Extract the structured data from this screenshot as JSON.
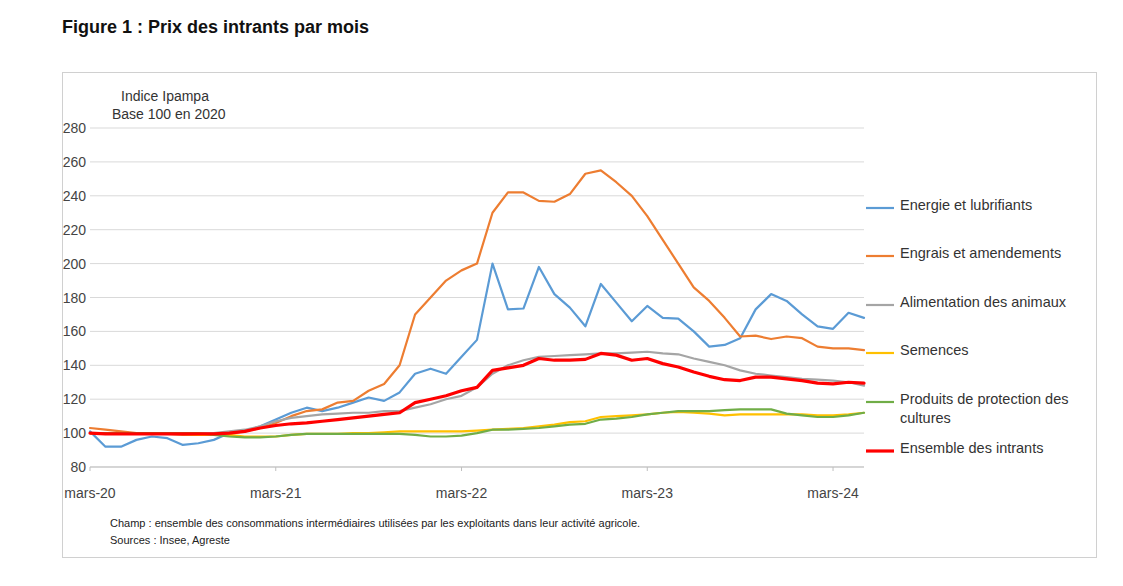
{
  "chart_data": {
    "type": "line",
    "title": "Figure 1 : Prix des intrants par mois",
    "ylabel": [
      "Indice Ipampa",
      "Base 100 en 2020"
    ],
    "annotations": [
      "Champ : ensemble des consommations intermédiaires utilisées par les exploitants dans leur activité agricole.",
      "Sources : Insee, Agreste"
    ],
    "categories": [
      "mars-20",
      null,
      null,
      null,
      null,
      null,
      null,
      null,
      null,
      null,
      null,
      null,
      "mars-21",
      null,
      null,
      null,
      null,
      null,
      null,
      null,
      null,
      null,
      null,
      null,
      "mars-22",
      null,
      null,
      null,
      null,
      null,
      null,
      null,
      null,
      null,
      null,
      null,
      "mars-23",
      null,
      null,
      null,
      null,
      null,
      null,
      null,
      null,
      null,
      null,
      null,
      "mars-24",
      null,
      null
    ],
    "ylim": [
      80,
      280
    ],
    "yticks": [
      80,
      100,
      120,
      140,
      160,
      180,
      200,
      220,
      240,
      260,
      280
    ],
    "grid": true,
    "legend": "right",
    "series": [
      {
        "name": "Energie et lubrifiants",
        "color": "#5b9bd5",
        "values": [
          101,
          92,
          92,
          96,
          98,
          97,
          93,
          94,
          96,
          100,
          101,
          104,
          108,
          112,
          115,
          113,
          115,
          118,
          121,
          119,
          124,
          135,
          138,
          135,
          145,
          155,
          200,
          173,
          173.5,
          198,
          182,
          174,
          163,
          188,
          177,
          166,
          175,
          168,
          167.5,
          160,
          151,
          152,
          156,
          173,
          182,
          178,
          170,
          163,
          161.5,
          171,
          168
        ]
      },
      {
        "name": "Engrais et amendements",
        "color": "#ed7d31",
        "values": [
          103,
          102,
          101,
          100,
          100,
          99.5,
          99,
          99,
          99,
          100,
          101,
          103,
          106,
          110,
          113,
          114,
          118,
          119,
          125,
          129,
          140,
          170,
          180,
          190,
          196,
          200,
          230,
          242,
          242,
          237,
          236.5,
          241,
          253,
          255,
          248,
          240,
          228,
          214,
          200,
          186,
          178,
          168,
          157,
          157.5,
          155.5,
          157,
          156,
          151,
          150,
          150,
          149
        ]
      },
      {
        "name": "Alimentation des animaux",
        "color": "#a5a5a5",
        "values": [
          100,
          100,
          100,
          100,
          100,
          100,
          100,
          100,
          100,
          101,
          102,
          104,
          107,
          109,
          110,
          111,
          111.5,
          112,
          112,
          113,
          113,
          115,
          117,
          120,
          122,
          127,
          135,
          140,
          143,
          145,
          145.5,
          146,
          146.5,
          147,
          147,
          147.5,
          148,
          147,
          146.5,
          144,
          142,
          140,
          137,
          135,
          134,
          133,
          132,
          131.5,
          131,
          130,
          128
        ]
      },
      {
        "name": "Semences",
        "color": "#ffc000",
        "values": [
          100,
          100,
          100,
          99.5,
          99.5,
          99.5,
          99.5,
          99,
          99,
          99,
          98,
          98,
          98,
          99,
          99.5,
          99.5,
          99.5,
          100,
          100,
          100.5,
          101,
          101,
          101,
          101,
          101,
          101.5,
          102,
          102.5,
          103,
          104,
          105,
          106.5,
          107,
          109.5,
          110,
          110.5,
          111,
          112,
          112.5,
          112,
          111.5,
          110.5,
          111,
          111,
          111,
          111,
          111,
          110.5,
          110.5,
          111,
          112
        ]
      },
      {
        "name": "Produits de protection des cultures",
        "color": "#70ad47",
        "values": [
          100,
          100,
          100,
          100,
          100,
          100,
          100,
          100,
          99,
          98,
          97.5,
          97.5,
          98,
          99,
          99.5,
          99.5,
          99.5,
          99.5,
          99.5,
          99.5,
          99.5,
          99,
          98,
          98,
          98.5,
          100,
          102,
          102,
          102.5,
          103,
          104,
          105,
          105.5,
          108,
          108.5,
          109.5,
          111,
          112,
          113,
          113,
          113,
          113.5,
          114,
          114,
          114,
          111.5,
          110.5,
          109.5,
          109.5,
          110.5,
          112
        ]
      },
      {
        "name": "Ensemble des intrants",
        "color": "#ff0000",
        "values": [
          100,
          99.5,
          99.5,
          99.5,
          99.5,
          99.5,
          99.5,
          99.5,
          99.5,
          100,
          101,
          103,
          104.5,
          105.5,
          106,
          107,
          108,
          109,
          110,
          111,
          112,
          118,
          120,
          122,
          125,
          127,
          137,
          138.5,
          140,
          144,
          143,
          143,
          143.5,
          147,
          146,
          143,
          144,
          141,
          139,
          136,
          133.5,
          131.5,
          131,
          133,
          133,
          132,
          131,
          129.5,
          129,
          130,
          129.5
        ]
      }
    ]
  }
}
